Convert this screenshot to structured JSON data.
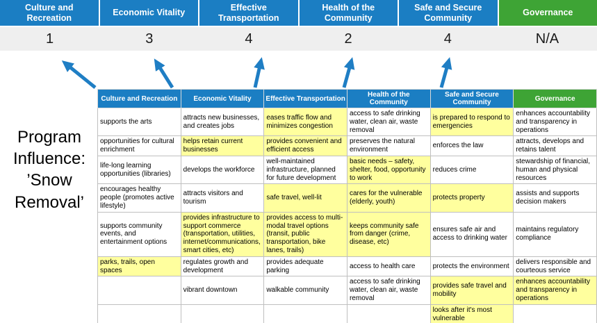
{
  "title": "Program Influence: ’Snow Removal’",
  "colors": {
    "pillar_blue": "#1B7EC3",
    "governance_green": "#3EA435",
    "highlight_yellow": "#FFFF9E",
    "score_band_gray": "#EFEFEF",
    "arrow_blue": "#1F7EC4"
  },
  "pillars": [
    {
      "name": "Culture and Recreation",
      "score": "1",
      "color": "blue"
    },
    {
      "name": "Economic Vitality",
      "score": "3",
      "color": "blue"
    },
    {
      "name": "Effective Transportation",
      "score": "4",
      "color": "blue"
    },
    {
      "name": "Health of the Community",
      "score": "2",
      "color": "blue"
    },
    {
      "name": "Safe and Secure Community",
      "score": "4",
      "color": "blue"
    },
    {
      "name": "Governance",
      "score": "N/A",
      "color": "green"
    }
  ],
  "table": {
    "rows": [
      [
        {
          "t": "supports the arts",
          "h": false
        },
        {
          "t": "attracts new businesses, and creates jobs",
          "h": false
        },
        {
          "t": "eases traffic flow and minimizes congestion",
          "h": true
        },
        {
          "t": "access to safe drinking water, clean air, waste removal",
          "h": false
        },
        {
          "t": "is prepared to respond to emergencies",
          "h": true
        },
        {
          "t": "enhances accountability and transparency in operations",
          "h": false
        }
      ],
      [
        {
          "t": "opportunities for cultural enrichment",
          "h": false
        },
        {
          "t": "helps retain current businesses",
          "h": true
        },
        {
          "t": "provides convenient and efficient access",
          "h": true
        },
        {
          "t": "preserves the natural environment",
          "h": false
        },
        {
          "t": "enforces the law",
          "h": false
        },
        {
          "t": "attracts, develops and retains talent",
          "h": false
        }
      ],
      [
        {
          "t": "life-long learning opportunities (libraries)",
          "h": false
        },
        {
          "t": "develops the workforce",
          "h": false
        },
        {
          "t": "well-maintained infrastructure, planned for future development",
          "h": false
        },
        {
          "t": "basic needs – safety, shelter, food, opportunity to work",
          "h": true
        },
        {
          "t": "reduces crime",
          "h": false
        },
        {
          "t": "stewardship of financial, human and physical resources",
          "h": false
        }
      ],
      [
        {
          "t": "encourages healthy people (promotes active lifestyle)",
          "h": false
        },
        {
          "t": "attracts visitors and tourism",
          "h": false
        },
        {
          "t": "safe travel, well-lit",
          "h": true
        },
        {
          "t": "cares for the vulnerable (elderly, youth)",
          "h": true
        },
        {
          "t": "protects property",
          "h": true
        },
        {
          "t": "assists and supports decision makers",
          "h": false
        }
      ],
      [
        {
          "t": "supports community events, and entertainment options",
          "h": false
        },
        {
          "t": "provides infrastructure to support commerce (transportation, utilities, internet/communications, smart cities, etc)",
          "h": true
        },
        {
          "t": "provides access to multi-modal travel options (transit, public transportation, bike lanes, trails)",
          "h": true
        },
        {
          "t": "keeps community safe from danger (crime, disease, etc)",
          "h": true
        },
        {
          "t": "ensures safe air and access to drinking water",
          "h": false
        },
        {
          "t": "maintains regulatory compliance",
          "h": false
        }
      ],
      [
        {
          "t": "parks, trails, open spaces",
          "h": true
        },
        {
          "t": "regulates growth and development",
          "h": false
        },
        {
          "t": "provides adequate parking",
          "h": false
        },
        {
          "t": "access to health care",
          "h": false
        },
        {
          "t": "protects the environment",
          "h": false
        },
        {
          "t": "delivers responsible and courteous service",
          "h": false
        }
      ],
      [
        {
          "t": "",
          "h": false
        },
        {
          "t": "vibrant downtown",
          "h": false
        },
        {
          "t": "walkable community",
          "h": false
        },
        {
          "t": "access to safe drinking water, clean air, waste removal",
          "h": false
        },
        {
          "t": "provides safe travel and mobility",
          "h": true
        },
        {
          "t": "enhances accountability and transparency in operations",
          "h": true
        }
      ],
      [
        {
          "t": "",
          "h": false
        },
        {
          "t": "",
          "h": false
        },
        {
          "t": "",
          "h": false
        },
        {
          "t": "",
          "h": false
        },
        {
          "t": "looks after it's most vulnerable",
          "h": true
        },
        {
          "t": "",
          "h": false
        }
      ]
    ]
  }
}
